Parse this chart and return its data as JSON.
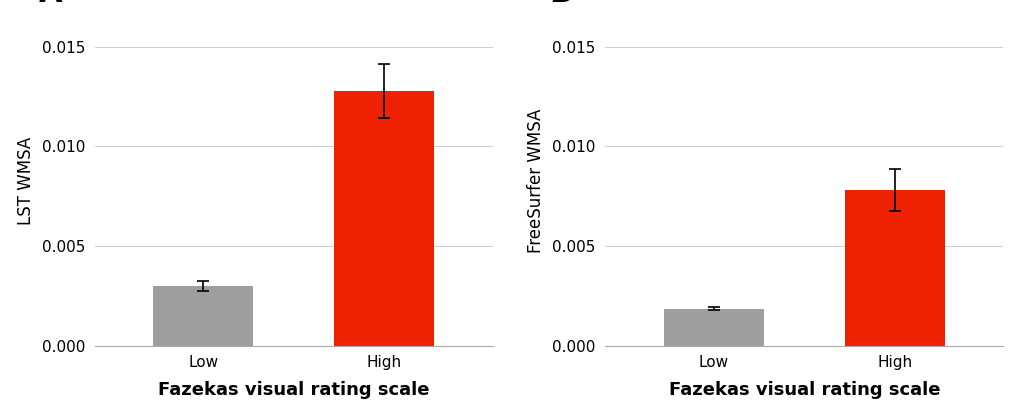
{
  "panel_A": {
    "label": "A",
    "ylabel": "LST WMSA",
    "xlabel": "Fazekas visual rating scale",
    "categories": [
      "Low",
      "High"
    ],
    "values": [
      0.003,
      0.01275
    ],
    "errors": [
      0.00025,
      0.00135
    ],
    "bar_colors": [
      "#9e9e9e",
      "#ee2200"
    ],
    "ylim": [
      0,
      0.0165
    ],
    "yticks": [
      0.0,
      0.005,
      0.01,
      0.015
    ]
  },
  "panel_B": {
    "label": "B",
    "ylabel": "FreeSurfer WMSA",
    "xlabel": "Fazekas visual rating scale",
    "categories": [
      "Low",
      "High"
    ],
    "values": [
      0.00185,
      0.0078
    ],
    "errors": [
      7.5e-05,
      0.00105
    ],
    "bar_colors": [
      "#9e9e9e",
      "#ee2200"
    ],
    "ylim": [
      0,
      0.0165
    ],
    "yticks": [
      0.0,
      0.005,
      0.01,
      0.015
    ]
  },
  "background_color": "#ffffff",
  "grid_color": "#cccccc",
  "bar_width": 0.55,
  "panel_label_fontsize": 22,
  "label_fontsize": 12,
  "tick_fontsize": 11,
  "xlabel_fontsize": 13,
  "error_capsize": 4,
  "error_linewidth": 1.2
}
